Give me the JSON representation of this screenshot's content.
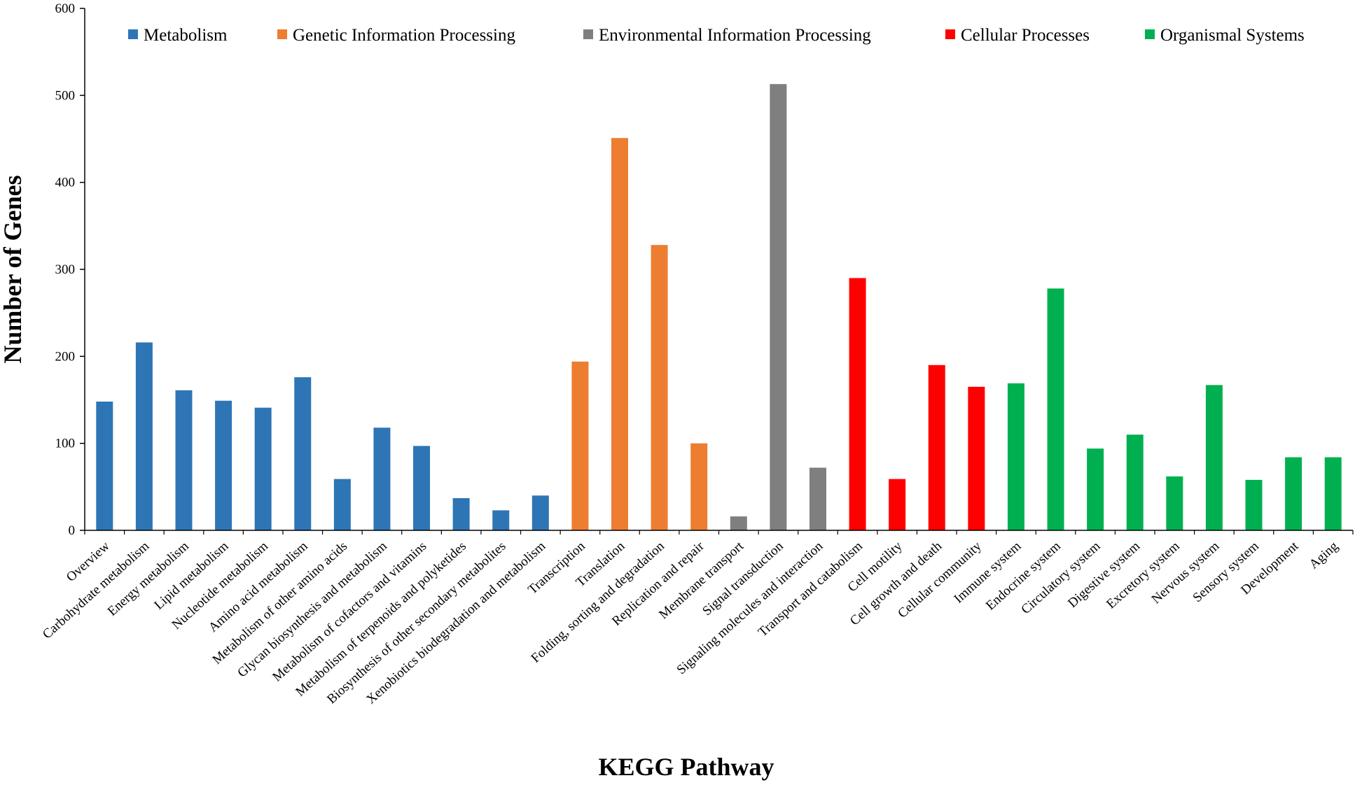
{
  "chart_data": {
    "type": "bar",
    "xlabel": "KEGG Pathway",
    "ylabel": "Number of Genes",
    "ylim": [
      0,
      600
    ],
    "yticks": [
      0,
      100,
      200,
      300,
      400,
      500,
      600
    ],
    "grid": false,
    "legend_position": "top",
    "groups": [
      {
        "name": "Metabolism",
        "color": "#2E75B6"
      },
      {
        "name": "Genetic Information Processing",
        "color": "#ED7D31"
      },
      {
        "name": "Environmental Information Processing",
        "color": "#7F7F7F"
      },
      {
        "name": "Cellular Processes",
        "color": "#FF0000"
      },
      {
        "name": "Organismal Systems",
        "color": "#00B050"
      }
    ],
    "categories": [
      "Overview",
      "Carbohydrate metabolism",
      "Energy metabolism",
      "Lipid metabolism",
      "Nucleotide metabolism",
      "Amino acid metabolism",
      "Metabolism of other amino acids",
      "Glycan biosynthesis and metabolism",
      "Metabolism of cofactors and vitamins",
      "Metabolism of terpenoids and polyketides",
      "Biosynthesis of other secondary metabolites",
      "Xenobiotics biodegradation and metabolism",
      "Transcription",
      "Translation",
      "Folding, sorting and degradation",
      "Replication and repair",
      "Membrane transport",
      "Signal transduction",
      "Signaling molecules and interaction",
      "Transport and catabolism",
      "Cell motility",
      "Cell growth and death",
      "Cellular community",
      "Immune system",
      "Endocrine system",
      "Circulatory system",
      "Digestive system",
      "Excretory system",
      "Nervous system",
      "Sensory system",
      "Development",
      "Aging"
    ],
    "values": [
      148,
      216,
      161,
      149,
      141,
      176,
      59,
      118,
      97,
      37,
      23,
      40,
      194,
      451,
      328,
      100,
      16,
      513,
      72,
      290,
      59,
      190,
      165,
      169,
      278,
      94,
      110,
      62,
      167,
      58,
      84,
      84
    ],
    "category_group": [
      0,
      0,
      0,
      0,
      0,
      0,
      0,
      0,
      0,
      0,
      0,
      0,
      1,
      1,
      1,
      1,
      2,
      2,
      2,
      3,
      3,
      3,
      3,
      4,
      4,
      4,
      4,
      4,
      4,
      4,
      4,
      4
    ]
  }
}
